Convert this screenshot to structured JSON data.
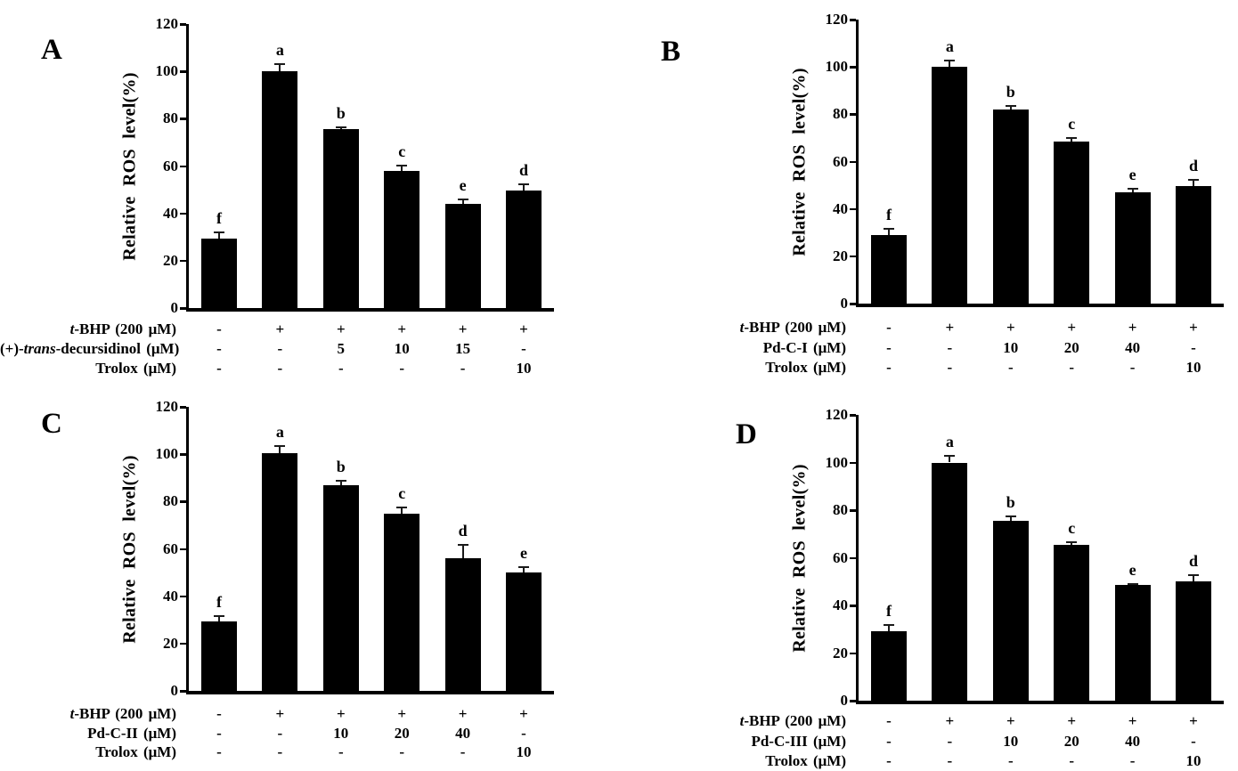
{
  "figure": {
    "background": "#ffffff",
    "bar_color": "#000000"
  },
  "chart_data": [
    {
      "type": "bar",
      "panel_label": "A",
      "title": "",
      "xlabel": "",
      "ylabel": "Relative ROS level(%)",
      "ylim": [
        0,
        120
      ],
      "yticks": [
        0,
        20,
        40,
        60,
        80,
        100,
        120
      ],
      "grid": "off",
      "bar_color": "#000000",
      "sig_letters": [
        "f",
        "a",
        "b",
        "c",
        "e",
        "d"
      ],
      "values": [
        29.5,
        100,
        75.5,
        58,
        44,
        49.5
      ],
      "errors": [
        2.8,
        3.5,
        1.3,
        2.5,
        2.2,
        3.3
      ],
      "treatment_rows": [
        {
          "label": "*t*-BHP (200 μM)",
          "values": [
            "-",
            "+",
            "+",
            "+",
            "+",
            "+"
          ]
        },
        {
          "label": "(+)-*trans*-decursidinol (μM)",
          "values": [
            "-",
            "-",
            "5",
            "10",
            "15",
            "-"
          ]
        },
        {
          "label": "Trolox (μM)",
          "values": [
            "-",
            "-",
            "-",
            "-",
            "-",
            "10"
          ]
        }
      ]
    },
    {
      "type": "bar",
      "panel_label": "B",
      "title": "",
      "xlabel": "",
      "ylabel": "Relative ROS level(%)",
      "ylim": [
        0,
        120
      ],
      "yticks": [
        0,
        20,
        40,
        60,
        80,
        100,
        120
      ],
      "grid": "off",
      "bar_color": "#000000",
      "sig_letters": [
        "f",
        "a",
        "b",
        "c",
        "e",
        "d"
      ],
      "values": [
        29,
        100,
        82,
        68.5,
        47,
        49.5
      ],
      "errors": [
        2.8,
        3.2,
        2,
        2,
        1.8,
        3.2
      ],
      "treatment_rows": [
        {
          "label": "*t*-BHP (200 μM)",
          "values": [
            "-",
            "+",
            "+",
            "+",
            "+",
            "+"
          ]
        },
        {
          "label": "Pd-C-I (μM)",
          "values": [
            "-",
            "-",
            "10",
            "20",
            "40",
            "-"
          ]
        },
        {
          "label": "Trolox (μM)",
          "values": [
            "-",
            "-",
            "-",
            "-",
            "-",
            "10"
          ]
        }
      ]
    },
    {
      "type": "bar",
      "panel_label": "C",
      "title": "",
      "xlabel": "",
      "ylabel": "Relative ROS level(%)",
      "ylim": [
        0,
        120
      ],
      "yticks": [
        0,
        20,
        40,
        60,
        80,
        100,
        120
      ],
      "grid": "off",
      "bar_color": "#000000",
      "sig_letters": [
        "f",
        "a",
        "b",
        "c",
        "d",
        "e"
      ],
      "values": [
        29.5,
        100.5,
        87,
        75,
        56,
        50
      ],
      "errors": [
        2.4,
        3.2,
        2,
        2.8,
        6,
        2.8
      ],
      "treatment_rows": [
        {
          "label": "*t*-BHP (200 μM)",
          "values": [
            "-",
            "+",
            "+",
            "+",
            "+",
            "+"
          ]
        },
        {
          "label": "Pd-C-II (μM)",
          "values": [
            "-",
            "-",
            "10",
            "20",
            "40",
            "-"
          ]
        },
        {
          "label": "Trolox (μM)",
          "values": [
            "-",
            "-",
            "-",
            "-",
            "-",
            "10"
          ]
        }
      ]
    },
    {
      "type": "bar",
      "panel_label": "D",
      "title": "",
      "xlabel": "",
      "ylabel": "Relative ROS level(%)",
      "ylim": [
        0,
        120
      ],
      "yticks": [
        0,
        20,
        40,
        60,
        80,
        100,
        120
      ],
      "grid": "off",
      "bar_color": "#000000",
      "sig_letters": [
        "f",
        "a",
        "b",
        "c",
        "e",
        "d"
      ],
      "values": [
        29,
        100,
        75.5,
        65.5,
        48.5,
        50
      ],
      "errors": [
        3,
        3.2,
        2.3,
        1.4,
        1,
        3
      ],
      "treatment_rows": [
        {
          "label": "*t*-BHP (200 μM)",
          "values": [
            "-",
            "+",
            "+",
            "+",
            "+",
            "+"
          ]
        },
        {
          "label": "Pd-C-III (μM)",
          "values": [
            "-",
            "-",
            "10",
            "20",
            "40",
            "-"
          ]
        },
        {
          "label": "Trolox (μM)",
          "values": [
            "-",
            "-",
            "-",
            "-",
            "-",
            "10"
          ]
        }
      ]
    }
  ]
}
